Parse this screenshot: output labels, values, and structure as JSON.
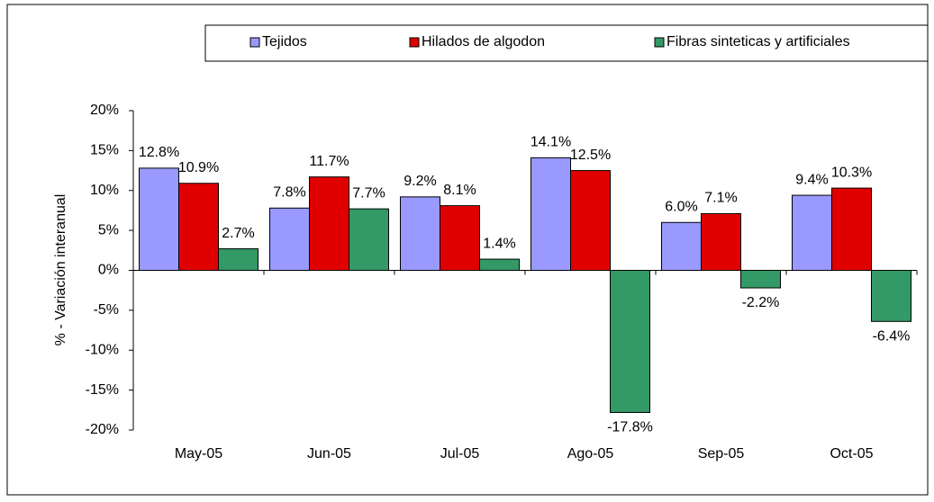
{
  "chart_data": {
    "type": "bar",
    "y_axis_label": "% - Variación interanual",
    "categories": [
      "May-05",
      "Jun-05",
      "Jul-05",
      "Ago-05",
      "Sep-05",
      "Oct-05"
    ],
    "series": [
      {
        "name": "Tejidos",
        "color": "#9999ff",
        "values": [
          12.8,
          7.8,
          9.2,
          14.1,
          6.0,
          9.4
        ],
        "value_labels": [
          "12.8%",
          "7.8%",
          "9.2%",
          "14.1%",
          "6.0%",
          "9.4%"
        ]
      },
      {
        "name": "Hilados de algodon",
        "color": "#e00000",
        "values": [
          10.9,
          11.7,
          8.1,
          12.5,
          7.1,
          10.3
        ],
        "value_labels": [
          "10.9%",
          "11.7%",
          "8.1%",
          "12.5%",
          "7.1%",
          "10.3%"
        ]
      },
      {
        "name": "Fibras sinteticas y artificiales",
        "color": "#339966",
        "values": [
          2.7,
          7.7,
          1.4,
          -17.8,
          -2.2,
          -6.4
        ],
        "value_labels": [
          "2.7%",
          "7.7%",
          "1.4%",
          "-17.8%",
          "-2.2%",
          "-6.4%"
        ]
      }
    ],
    "ylim": [
      -20,
      20
    ],
    "yticks": [
      {
        "value": -20,
        "label": "-20%"
      },
      {
        "value": -15,
        "label": "-15%"
      },
      {
        "value": -10,
        "label": "-10%"
      },
      {
        "value": -5,
        "label": "-5%"
      },
      {
        "value": 0,
        "label": "0%"
      },
      {
        "value": 5,
        "label": "5%"
      },
      {
        "value": 10,
        "label": "10%"
      },
      {
        "value": 15,
        "label": "15%"
      },
      {
        "value": 20,
        "label": "20%"
      }
    ],
    "legend": "top"
  }
}
